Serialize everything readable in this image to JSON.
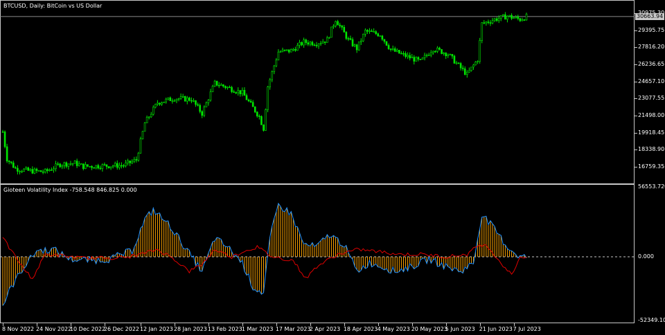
{
  "main_title": "BTCUSD, Daily:  BitCoin vs US Dollar",
  "indicator_title": "Gioteen Volatility Index -758.548 846.825 0.000",
  "current_price": "30663.94",
  "colors": {
    "bull": "#00e600",
    "bear": "#00e600",
    "hist": "#ffa500",
    "blue": "#1e90ff",
    "red": "#e00000",
    "grid": "#c8c8c8",
    "bg": "#000000"
  },
  "price_axis": [
    "30975.30",
    "29395.75",
    "27816.20",
    "26236.65",
    "24657.10",
    "23077.55",
    "21498.00",
    "19918.45",
    "18338.90",
    "16759.35"
  ],
  "indicator_axis": [
    "56553.720",
    "0.000",
    "-52349.105"
  ],
  "date_axis": [
    "8 Nov 2022",
    "24 Nov 2022",
    "10 Dec 2022",
    "26 Dec 2022",
    "12 Jan 2023",
    "28 Jan 2023",
    "13 Feb 2023",
    "1 Mar 2023",
    "17 Mar 2023",
    "2 Apr 2023",
    "18 Apr 2023",
    "4 May 2023",
    "20 May 2023",
    "5 Jun 2023",
    "21 Jun 2023",
    "7 Jul 2023"
  ],
  "chart_data": {
    "type": "line",
    "symbol": "BTCUSD",
    "timeframe": "Daily",
    "ylim_price": [
      16000,
      31400
    ],
    "ylim_indicator": [
      -52349.105,
      56553.72
    ],
    "close_path": [
      [
        "2022-11-08",
        20000
      ],
      [
        "2022-11-10",
        17500
      ],
      [
        "2022-11-14",
        16600
      ],
      [
        "2022-11-20",
        16400
      ],
      [
        "2022-11-28",
        16300
      ],
      [
        "2022-12-05",
        17000
      ],
      [
        "2022-12-12",
        17100
      ],
      [
        "2022-12-16",
        16800
      ],
      [
        "2022-12-26",
        16850
      ],
      [
        "2023-01-04",
        16900
      ],
      [
        "2023-01-10",
        17400
      ],
      [
        "2023-01-14",
        20800
      ],
      [
        "2023-01-20",
        22700
      ],
      [
        "2023-01-28",
        23100
      ],
      [
        "2023-02-05",
        23000
      ],
      [
        "2023-02-10",
        21700
      ],
      [
        "2023-02-16",
        24500
      ],
      [
        "2023-02-22",
        24100
      ],
      [
        "2023-03-01",
        23600
      ],
      [
        "2023-03-09",
        21400
      ],
      [
        "2023-03-11",
        20300
      ],
      [
        "2023-03-13",
        24200
      ],
      [
        "2023-03-18",
        27400
      ],
      [
        "2023-03-24",
        27500
      ],
      [
        "2023-03-30",
        28300
      ],
      [
        "2023-04-05",
        28200
      ],
      [
        "2023-04-10",
        28500
      ],
      [
        "2023-04-14",
        30400
      ],
      [
        "2023-04-20",
        28500
      ],
      [
        "2023-04-24",
        27700
      ],
      [
        "2023-04-28",
        29300
      ],
      [
        "2023-05-05",
        29000
      ],
      [
        "2023-05-10",
        27600
      ],
      [
        "2023-05-16",
        27100
      ],
      [
        "2023-05-24",
        26500
      ],
      [
        "2023-05-30",
        27700
      ],
      [
        "2023-06-06",
        27200
      ],
      [
        "2023-06-12",
        25900
      ],
      [
        "2023-06-15",
        25300
      ],
      [
        "2023-06-20",
        26700
      ],
      [
        "2023-06-22",
        30000
      ],
      [
        "2023-06-28",
        30400
      ],
      [
        "2023-07-04",
        30700
      ],
      [
        "2023-07-10",
        30400
      ],
      [
        "2023-07-13",
        30663.94
      ]
    ],
    "volatility_path": [
      [
        "2022-11-08",
        -40000
      ],
      [
        "2022-11-12",
        -25000
      ],
      [
        "2022-11-18",
        -8000
      ],
      [
        "2022-11-24",
        5000
      ],
      [
        "2022-12-02",
        6000
      ],
      [
        "2022-12-10",
        -2000
      ],
      [
        "2022-12-20",
        -3000
      ],
      [
        "2022-12-28",
        -2000
      ],
      [
        "2023-01-08",
        5000
      ],
      [
        "2023-01-14",
        30000
      ],
      [
        "2023-01-18",
        38000
      ],
      [
        "2023-01-26",
        25000
      ],
      [
        "2023-02-03",
        5000
      ],
      [
        "2023-02-10",
        -12000
      ],
      [
        "2023-02-16",
        15000
      ],
      [
        "2023-02-22",
        8000
      ],
      [
        "2023-03-01",
        -5000
      ],
      [
        "2023-03-06",
        -25000
      ],
      [
        "2023-03-11",
        -30000
      ],
      [
        "2023-03-14",
        15000
      ],
      [
        "2023-03-18",
        42000
      ],
      [
        "2023-03-24",
        35000
      ],
      [
        "2023-03-30",
        10000
      ],
      [
        "2023-04-05",
        8000
      ],
      [
        "2023-04-11",
        18000
      ],
      [
        "2023-04-18",
        10000
      ],
      [
        "2023-04-24",
        -12000
      ],
      [
        "2023-04-30",
        -5000
      ],
      [
        "2023-05-06",
        -8000
      ],
      [
        "2023-05-12",
        -12000
      ],
      [
        "2023-05-20",
        -8000
      ],
      [
        "2023-05-28",
        -2000
      ],
      [
        "2023-06-05",
        -8000
      ],
      [
        "2023-06-12",
        -12000
      ],
      [
        "2023-06-18",
        -5000
      ],
      [
        "2023-06-22",
        35000
      ],
      [
        "2023-06-28",
        22000
      ],
      [
        "2023-07-04",
        8000
      ],
      [
        "2023-07-10",
        0
      ]
    ],
    "red_path": [
      [
        "2022-11-08",
        15000
      ],
      [
        "2022-11-12",
        5000
      ],
      [
        "2022-11-18",
        -10000
      ],
      [
        "2022-11-22",
        -18000
      ],
      [
        "2022-11-28",
        2000
      ],
      [
        "2022-12-05",
        1000
      ],
      [
        "2022-12-15",
        -1000
      ],
      [
        "2022-12-25",
        -1000
      ],
      [
        "2023-01-05",
        -500
      ],
      [
        "2023-01-12",
        2000
      ],
      [
        "2023-01-20",
        6000
      ],
      [
        "2023-01-28",
        -2000
      ],
      [
        "2023-02-04",
        -12000
      ],
      [
        "2023-02-10",
        -6000
      ],
      [
        "2023-02-16",
        6000
      ],
      [
        "2023-02-24",
        0
      ],
      [
        "2023-03-01",
        4000
      ],
      [
        "2023-03-08",
        8000
      ],
      [
        "2023-03-15",
        0
      ],
      [
        "2023-03-25",
        -3000
      ],
      [
        "2023-03-31",
        -18000
      ],
      [
        "2023-04-05",
        -8000
      ],
      [
        "2023-04-15",
        2000
      ],
      [
        "2023-04-25",
        6000
      ],
      [
        "2023-05-05",
        4000
      ],
      [
        "2023-05-15",
        2000
      ],
      [
        "2023-05-25",
        2000
      ],
      [
        "2023-06-05",
        0
      ],
      [
        "2023-06-15",
        2000
      ],
      [
        "2023-06-21",
        10000
      ],
      [
        "2023-06-25",
        8000
      ],
      [
        "2023-07-01",
        -5000
      ],
      [
        "2023-07-06",
        -15000
      ],
      [
        "2023-07-10",
        0
      ]
    ]
  }
}
